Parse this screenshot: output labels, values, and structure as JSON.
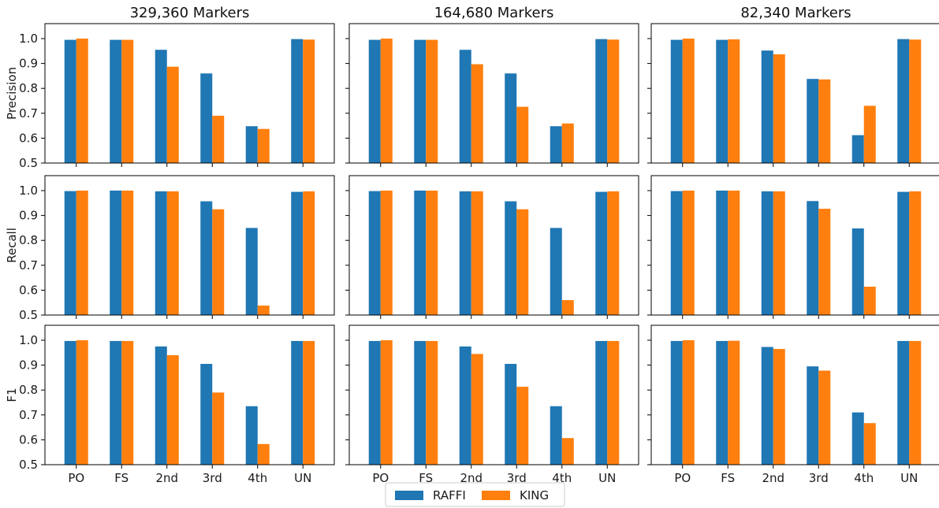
{
  "chart_data": {
    "type": "bar",
    "layout": "grid 3x3",
    "columns": [
      "329,360 Markers",
      "164,680 Markers",
      "82,340 Markers"
    ],
    "rows": [
      "Precision",
      "Recall",
      "F1"
    ],
    "categories": [
      "PO",
      "FS",
      "2nd",
      "3rd",
      "4th",
      "UN"
    ],
    "ylim": [
      0.5,
      1.0
    ],
    "yticks": [
      "0.5",
      "0.6",
      "0.7",
      "0.8",
      "0.9",
      "1.0"
    ],
    "legend": {
      "placement": "bottom-center",
      "entries": [
        "RAFFI",
        "KING"
      ]
    },
    "colors": {
      "RAFFI": "#1f77b4",
      "KING": "#ff7f0e"
    },
    "grid": false,
    "panels": [
      [
        {
          "row": "Precision",
          "column": "329,360 Markers",
          "series": [
            {
              "name": "RAFFI",
              "values": [
                0.995,
                0.995,
                0.955,
                0.86,
                0.648,
                0.998
              ]
            },
            {
              "name": "KING",
              "values": [
                1.0,
                0.995,
                0.887,
                0.69,
                0.637,
                0.996
              ]
            }
          ]
        },
        {
          "row": "Precision",
          "column": "164,680 Markers",
          "series": [
            {
              "name": "RAFFI",
              "values": [
                0.995,
                0.995,
                0.955,
                0.86,
                0.648,
                0.998
              ]
            },
            {
              "name": "KING",
              "values": [
                1.0,
                0.995,
                0.897,
                0.726,
                0.659,
                0.996
              ]
            }
          ]
        },
        {
          "row": "Precision",
          "column": "82,340 Markers",
          "series": [
            {
              "name": "RAFFI",
              "values": [
                0.995,
                0.995,
                0.952,
                0.838,
                0.612,
                0.998
              ]
            },
            {
              "name": "KING",
              "values": [
                1.0,
                0.997,
                0.937,
                0.836,
                0.73,
                0.996
              ]
            }
          ]
        }
      ],
      [
        {
          "row": "Recall",
          "column": "329,360 Markers",
          "series": [
            {
              "name": "RAFFI",
              "values": [
                0.998,
                1.0,
                0.997,
                0.957,
                0.85,
                0.995
              ]
            },
            {
              "name": "KING",
              "values": [
                1.0,
                1.0,
                0.997,
                0.925,
                0.538,
                0.997
              ]
            }
          ]
        },
        {
          "row": "Recall",
          "column": "164,680 Markers",
          "series": [
            {
              "name": "RAFFI",
              "values": [
                0.998,
                1.0,
                0.997,
                0.957,
                0.85,
                0.995
              ]
            },
            {
              "name": "KING",
              "values": [
                1.0,
                1.0,
                0.997,
                0.925,
                0.56,
                0.997
              ]
            }
          ]
        },
        {
          "row": "Recall",
          "column": "82,340 Markers",
          "series": [
            {
              "name": "RAFFI",
              "values": [
                0.998,
                1.0,
                0.997,
                0.958,
                0.848,
                0.995
              ]
            },
            {
              "name": "KING",
              "values": [
                1.0,
                1.0,
                0.997,
                0.927,
                0.614,
                0.997
              ]
            }
          ]
        }
      ],
      [
        {
          "row": "F1",
          "column": "329,360 Markers",
          "series": [
            {
              "name": "RAFFI",
              "values": [
                0.997,
                0.997,
                0.975,
                0.905,
                0.735,
                0.997
              ]
            },
            {
              "name": "KING",
              "values": [
                1.0,
                0.997,
                0.94,
                0.79,
                0.583,
                0.997
              ]
            }
          ]
        },
        {
          "row": "F1",
          "column": "164,680 Markers",
          "series": [
            {
              "name": "RAFFI",
              "values": [
                0.997,
                0.997,
                0.975,
                0.905,
                0.735,
                0.997
              ]
            },
            {
              "name": "KING",
              "values": [
                1.0,
                0.997,
                0.945,
                0.813,
                0.607,
                0.997
              ]
            }
          ]
        },
        {
          "row": "F1",
          "column": "82,340 Markers",
          "series": [
            {
              "name": "RAFFI",
              "values": [
                0.997,
                0.997,
                0.973,
                0.895,
                0.71,
                0.997
              ]
            },
            {
              "name": "KING",
              "values": [
                1.0,
                0.998,
                0.965,
                0.878,
                0.667,
                0.997
              ]
            }
          ]
        }
      ]
    ]
  }
}
